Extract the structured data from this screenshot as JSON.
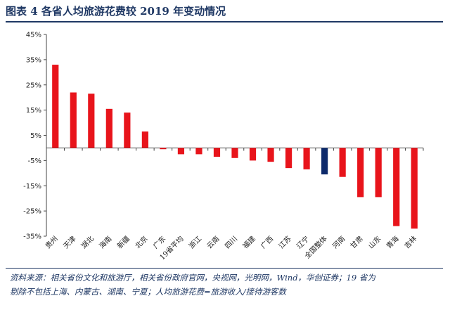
{
  "title": "图表 4   各省人均旅游花费较 2019 年变动情况",
  "source": {
    "line1": "资料来源：相关省份文化和旅游厅，相关省份政府官网，央视网，光明网，Wind，华创证券；19 省为",
    "line2": "剔除不包括上海、内蒙古、湖南、宁夏；人均旅游花费=旅游收入/接待游客数"
  },
  "colors": {
    "positive": "#e8141b",
    "negative": "#e8141b",
    "highlight": "#0d2a6b",
    "axis": "#444444"
  },
  "chart_data": {
    "type": "bar",
    "categories": [
      "贵州",
      "天津",
      "湖北",
      "海南",
      "新疆",
      "北京",
      "广东",
      "19省平均",
      "浙江",
      "云南",
      "四川",
      "福建",
      "广西",
      "江苏",
      "辽宁",
      "全国整体",
      "河南",
      "甘肃",
      "山东",
      "青海",
      "吉林"
    ],
    "values": [
      33,
      22,
      21.5,
      15.5,
      14,
      6.5,
      -0.5,
      -2.5,
      -2.5,
      -3.5,
      -4,
      -5,
      -5.5,
      -8,
      -8.5,
      -10.5,
      -11.5,
      -19.5,
      -19.5,
      -31,
      -32
    ],
    "highlight_index": 15,
    "ylim": [
      -35,
      45
    ],
    "yticks": [
      -35,
      -25,
      -15,
      -5,
      5,
      15,
      25,
      35,
      45
    ],
    "ytick_labels": [
      "-35%",
      "-25%",
      "-15%",
      "-5%",
      "5%",
      "15%",
      "25%",
      "35%",
      "45%"
    ],
    "title": "",
    "xlabel": "",
    "ylabel": "",
    "grid": false
  }
}
